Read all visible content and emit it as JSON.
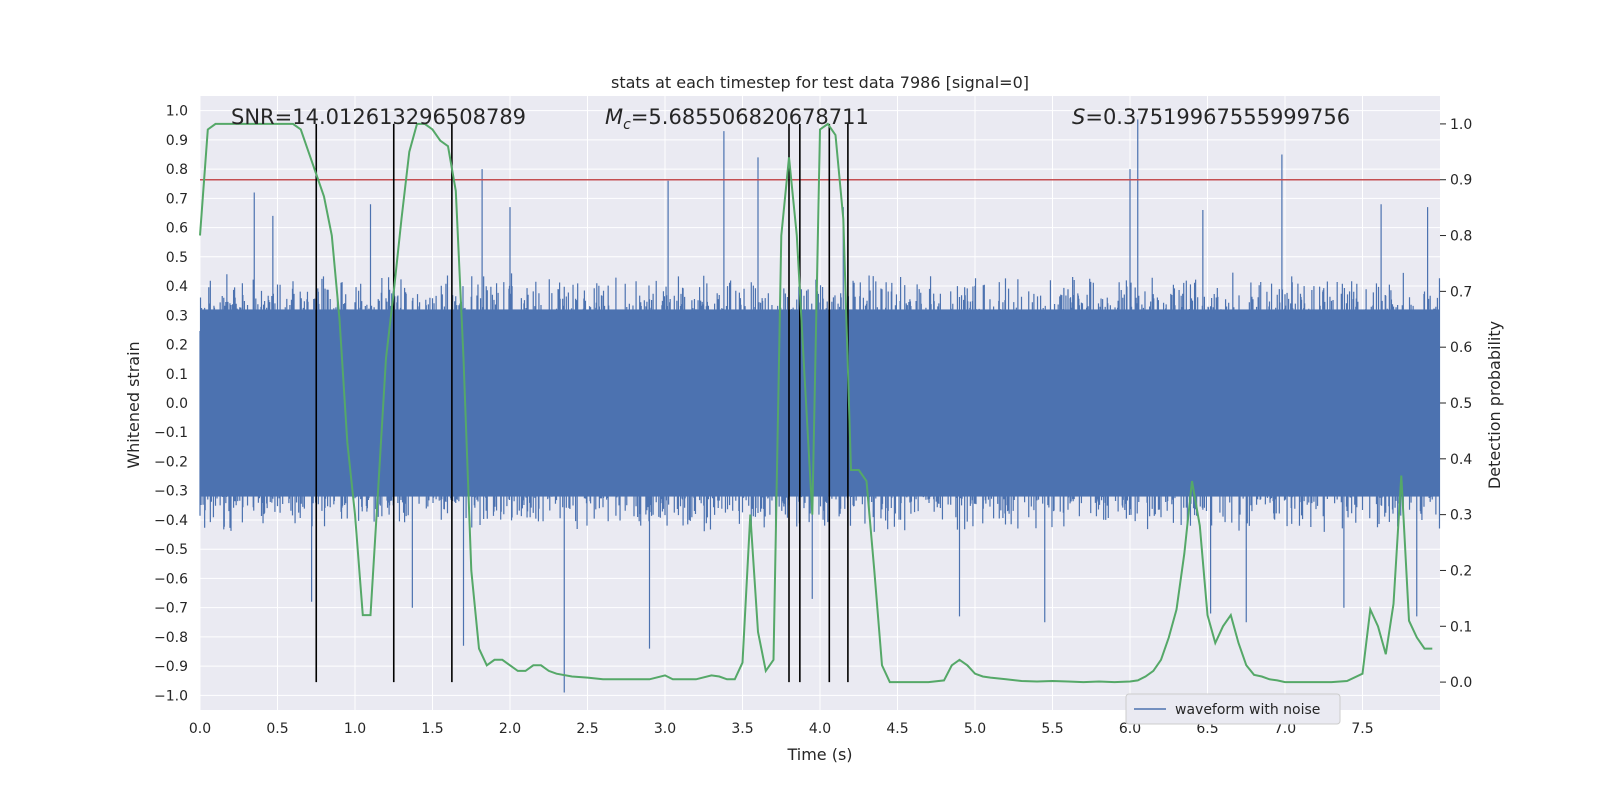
{
  "chart_data": {
    "type": "line",
    "title": "stats at each timestep for test data 7986 [signal=0]",
    "xlabel": "Time (s)",
    "ylabel_left": "Whitened strain",
    "ylabel_right": "Detection probability",
    "xlim": [
      0.0,
      8.0
    ],
    "ylim_left": [
      -1.05,
      1.05
    ],
    "ylim_right": [
      -0.05,
      1.05
    ],
    "x_ticks": [
      "0.0",
      "0.5",
      "1.0",
      "1.5",
      "2.0",
      "2.5",
      "3.0",
      "3.5",
      "4.0",
      "4.5",
      "5.0",
      "5.5",
      "6.0",
      "6.5",
      "7.0",
      "7.5"
    ],
    "y_left_ticks": [
      "1.0",
      "0.9",
      "0.8",
      "0.7",
      "0.6",
      "0.5",
      "0.4",
      "0.3",
      "0.2",
      "0.1",
      "0.0",
      "-0.1",
      "-0.2",
      "-0.3",
      "-0.4",
      "-0.5",
      "-0.6",
      "-0.7",
      "-0.8",
      "-0.9",
      "-1.0"
    ],
    "y_right_ticks": [
      "1.0",
      "0.9",
      "0.8",
      "0.7",
      "0.6",
      "0.5",
      "0.4",
      "0.3",
      "0.2",
      "0.1",
      "0.0"
    ],
    "grid": true,
    "annotations": {
      "snr": "SNR=14.012613296508789",
      "mc_symbol": "M",
      "mc_sub": "c",
      "mc_value": "=5.685506820678711",
      "s_symbol": "S",
      "s_value": "=0.37519967555999756"
    },
    "threshold": {
      "value": 0.9,
      "axis": "right",
      "color": "#c44e52"
    },
    "event_lines_x": [
      0.75,
      1.25,
      1.625,
      3.8,
      3.87,
      4.06,
      4.18
    ],
    "series": [
      {
        "name": "waveform with noise",
        "axis": "left",
        "color": "#4c72b0",
        "legend": true,
        "typical_envelope": [
          -0.45,
          0.45
        ],
        "spikes": [
          {
            "x": 0.35,
            "y": 0.72
          },
          {
            "x": 0.47,
            "y": 0.64
          },
          {
            "x": 0.72,
            "y": -0.68
          },
          {
            "x": 1.1,
            "y": 0.68
          },
          {
            "x": 1.37,
            "y": -0.7
          },
          {
            "x": 1.7,
            "y": -0.83
          },
          {
            "x": 1.82,
            "y": 0.8
          },
          {
            "x": 2.0,
            "y": 0.67
          },
          {
            "x": 2.35,
            "y": -0.99
          },
          {
            "x": 2.9,
            "y": -0.84
          },
          {
            "x": 3.02,
            "y": 0.76
          },
          {
            "x": 3.38,
            "y": 0.93
          },
          {
            "x": 3.6,
            "y": 0.84
          },
          {
            "x": 3.95,
            "y": -0.67
          },
          {
            "x": 4.15,
            "y": 0.67
          },
          {
            "x": 4.9,
            "y": -0.73
          },
          {
            "x": 5.45,
            "y": -0.75
          },
          {
            "x": 6.0,
            "y": 0.8
          },
          {
            "x": 6.05,
            "y": 0.97
          },
          {
            "x": 6.47,
            "y": 0.66
          },
          {
            "x": 6.52,
            "y": -0.72
          },
          {
            "x": 6.75,
            "y": -0.75
          },
          {
            "x": 6.98,
            "y": 0.85
          },
          {
            "x": 7.38,
            "y": -0.7
          },
          {
            "x": 7.62,
            "y": 0.68
          },
          {
            "x": 7.85,
            "y": -0.73
          },
          {
            "x": 7.92,
            "y": 0.67
          }
        ]
      },
      {
        "name": "detection probability",
        "axis": "right",
        "color": "#55a868",
        "legend": false,
        "x": [
          0.0,
          0.05,
          0.1,
          0.2,
          0.3,
          0.4,
          0.5,
          0.6,
          0.65,
          0.7,
          0.8,
          0.85,
          0.9,
          0.95,
          1.0,
          1.05,
          1.1,
          1.15,
          1.2,
          1.25,
          1.3,
          1.35,
          1.4,
          1.45,
          1.5,
          1.55,
          1.6,
          1.65,
          1.7,
          1.75,
          1.8,
          1.85,
          1.9,
          1.95,
          2.0,
          2.05,
          2.1,
          2.15,
          2.2,
          2.25,
          2.3,
          2.4,
          2.5,
          2.6,
          2.7,
          2.8,
          2.9,
          3.0,
          3.05,
          3.1,
          3.2,
          3.3,
          3.35,
          3.4,
          3.45,
          3.5,
          3.55,
          3.6,
          3.65,
          3.7,
          3.75,
          3.8,
          3.85,
          3.9,
          3.95,
          4.0,
          4.05,
          4.1,
          4.15,
          4.2,
          4.25,
          4.3,
          4.35,
          4.4,
          4.45,
          4.5,
          4.55,
          4.6,
          4.7,
          4.8,
          4.85,
          4.9,
          4.95,
          5.0,
          5.05,
          5.1,
          5.2,
          5.3,
          5.4,
          5.5,
          5.6,
          5.7,
          5.8,
          5.9,
          6.0,
          6.05,
          6.1,
          6.15,
          6.2,
          6.25,
          6.3,
          6.35,
          6.4,
          6.45,
          6.5,
          6.55,
          6.6,
          6.65,
          6.7,
          6.75,
          6.8,
          6.85,
          6.9,
          6.95,
          7.0,
          7.1,
          7.2,
          7.3,
          7.4,
          7.5,
          7.55,
          7.6,
          7.65,
          7.7,
          7.75,
          7.8,
          7.85,
          7.9,
          7.95
        ],
        "y": [
          0.8,
          0.99,
          1.0,
          1.0,
          1.0,
          1.0,
          1.0,
          1.0,
          0.99,
          0.95,
          0.87,
          0.8,
          0.65,
          0.43,
          0.3,
          0.12,
          0.12,
          0.35,
          0.58,
          0.7,
          0.83,
          0.95,
          1.0,
          1.0,
          0.99,
          0.97,
          0.96,
          0.88,
          0.58,
          0.2,
          0.06,
          0.03,
          0.04,
          0.04,
          0.03,
          0.02,
          0.02,
          0.03,
          0.03,
          0.02,
          0.015,
          0.01,
          0.008,
          0.005,
          0.005,
          0.005,
          0.005,
          0.012,
          0.005,
          0.005,
          0.005,
          0.012,
          0.01,
          0.005,
          0.005,
          0.035,
          0.3,
          0.09,
          0.02,
          0.04,
          0.8,
          0.94,
          0.8,
          0.55,
          0.3,
          0.99,
          1.0,
          0.98,
          0.83,
          0.38,
          0.38,
          0.36,
          0.2,
          0.03,
          0.0,
          0.0,
          0.0,
          0.0,
          0.0,
          0.003,
          0.03,
          0.04,
          0.03,
          0.015,
          0.01,
          0.008,
          0.005,
          0.002,
          0.001,
          0.002,
          0.001,
          0.0,
          0.001,
          0.0,
          0.001,
          0.003,
          0.01,
          0.02,
          0.04,
          0.08,
          0.13,
          0.23,
          0.36,
          0.28,
          0.12,
          0.07,
          0.1,
          0.12,
          0.07,
          0.03,
          0.013,
          0.01,
          0.005,
          0.003,
          0.0,
          0.0,
          0.0,
          0.0,
          0.002,
          0.015,
          0.13,
          0.1,
          0.05,
          0.14,
          0.37,
          0.11,
          0.08,
          0.06,
          0.06
        ]
      }
    ],
    "legend": {
      "placement": "lower-right",
      "entries": [
        "waveform with noise"
      ]
    },
    "colors": {
      "plot_bg": "#eaeaf2",
      "grid": "#ffffff",
      "event_line": "#000000",
      "text": "#262626"
    }
  }
}
